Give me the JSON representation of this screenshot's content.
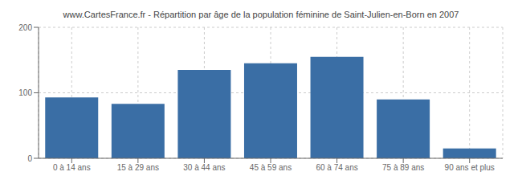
{
  "chart_data": {
    "type": "bar",
    "title": "www.CartesFrance.fr - Répartition par âge de la population féminine de Saint-Julien-en-Born en 2007",
    "categories": [
      "0 à 14 ans",
      "15 à 29 ans",
      "30 à 44 ans",
      "45 à 59 ans",
      "60 à 74 ans",
      "75 à 89 ans",
      "90 ans et plus"
    ],
    "values": [
      93,
      83,
      135,
      145,
      155,
      90,
      15
    ],
    "color": "#3a6ea5",
    "ylim": [
      0,
      200
    ],
    "yticks": [
      0,
      100,
      200
    ],
    "grid": true
  }
}
